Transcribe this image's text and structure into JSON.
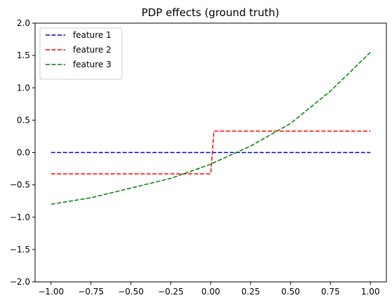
{
  "chart_data": {
    "type": "line",
    "title": "PDP effects (ground truth)",
    "xlabel": "",
    "ylabel": "",
    "xlim": [
      -1.1,
      1.1
    ],
    "ylim": [
      -2.0,
      2.0
    ],
    "x_ticks": [
      -1.0,
      -0.75,
      -0.5,
      -0.25,
      0.0,
      0.25,
      0.5,
      0.75,
      1.0
    ],
    "x_tick_labels": [
      "−1.00",
      "−0.75",
      "−0.50",
      "−0.25",
      "0.00",
      "0.25",
      "0.50",
      "0.75",
      "1.00"
    ],
    "y_ticks": [
      -2.0,
      -1.5,
      -1.0,
      -0.5,
      0.0,
      0.5,
      1.0,
      1.5,
      2.0
    ],
    "y_tick_labels": [
      "−2.0",
      "−1.5",
      "−1.0",
      "−0.5",
      "0.0",
      "0.5",
      "1.0",
      "1.5",
      "2.0"
    ],
    "grid": false,
    "legend_position": "top-left",
    "series": [
      {
        "name": "feature 1",
        "color": "#0000cc",
        "line_style": "dashed",
        "x": [
          -1.0,
          1.0
        ],
        "y": [
          0.0,
          0.0
        ]
      },
      {
        "name": "feature 2",
        "color": "#ff0000",
        "line_style": "dashed",
        "x": [
          -1.0,
          0.0,
          0.02,
          1.0
        ],
        "y": [
          -0.33,
          -0.33,
          0.33,
          0.33
        ]
      },
      {
        "name": "feature 3",
        "color": "#008000",
        "line_style": "dashed",
        "x": [
          -1.0,
          -0.75,
          -0.5,
          -0.25,
          0.0,
          0.25,
          0.5,
          0.75,
          1.0
        ],
        "y": [
          -0.8,
          -0.7,
          -0.55,
          -0.4,
          -0.18,
          0.1,
          0.45,
          0.95,
          1.55
        ]
      }
    ]
  }
}
